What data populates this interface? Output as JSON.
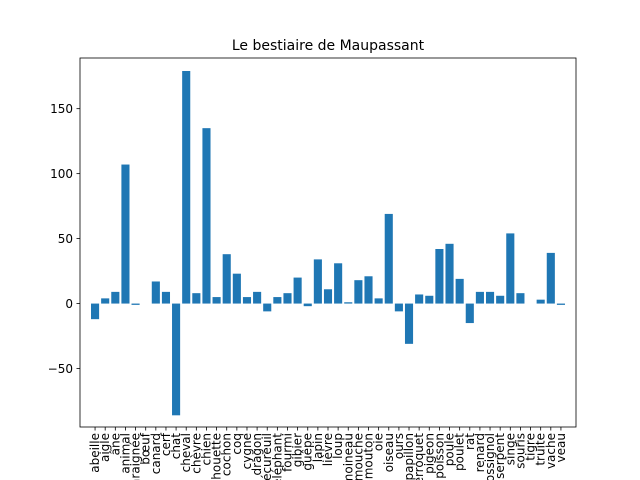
{
  "chart_data": {
    "type": "bar",
    "title": "Le bestiaire de Maupassant",
    "xlabel": "",
    "ylabel": "",
    "ylim": [
      -95,
      189
    ],
    "yticks": [
      -50,
      0,
      50,
      100,
      150
    ],
    "grid": false,
    "bar_color": "#1f77b4",
    "categories": [
      "abeille",
      "aigle",
      "âne",
      "animal",
      "araignée",
      "bœuf",
      "canard",
      "cerf",
      "chat",
      "cheval",
      "chèvre",
      "chien",
      "chouette",
      "cochon",
      "coq",
      "cygne",
      "dragon",
      "écureuil",
      "éléphant",
      "fourmi",
      "gibier",
      "guêpe",
      "lapin",
      "lièvre",
      "loup",
      "moineau",
      "mouche",
      "mouton",
      "oie",
      "oiseau",
      "ours",
      "papillon",
      "perroquet",
      "pigeon",
      "poisson",
      "poule",
      "poulet",
      "rat",
      "renard",
      "rossignol",
      "serpent",
      "singe",
      "souris",
      "tigre",
      "truite",
      "vache",
      "veau"
    ],
    "values": [
      -12,
      4,
      9,
      107,
      -1,
      0,
      17,
      9,
      -86,
      179,
      8,
      135,
      5,
      38,
      23,
      5,
      9,
      -6,
      5,
      8,
      20,
      -2,
      34,
      11,
      31,
      1,
      18,
      21,
      4,
      69,
      -6,
      -31,
      7,
      6,
      42,
      46,
      19,
      -15,
      9,
      9,
      6,
      54,
      8,
      0,
      3,
      39,
      -1
    ]
  }
}
